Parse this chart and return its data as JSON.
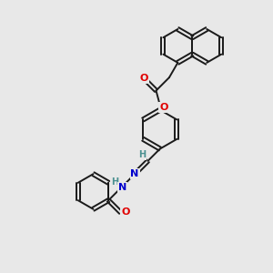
{
  "background_color": "#e8e8e8",
  "bond_color": "#1a1a1a",
  "atom_colors": {
    "O": "#e00000",
    "N": "#0000cc",
    "H": "#4a9090",
    "C": "#1a1a1a"
  },
  "figsize": [
    3.0,
    3.0
  ],
  "dpi": 100
}
